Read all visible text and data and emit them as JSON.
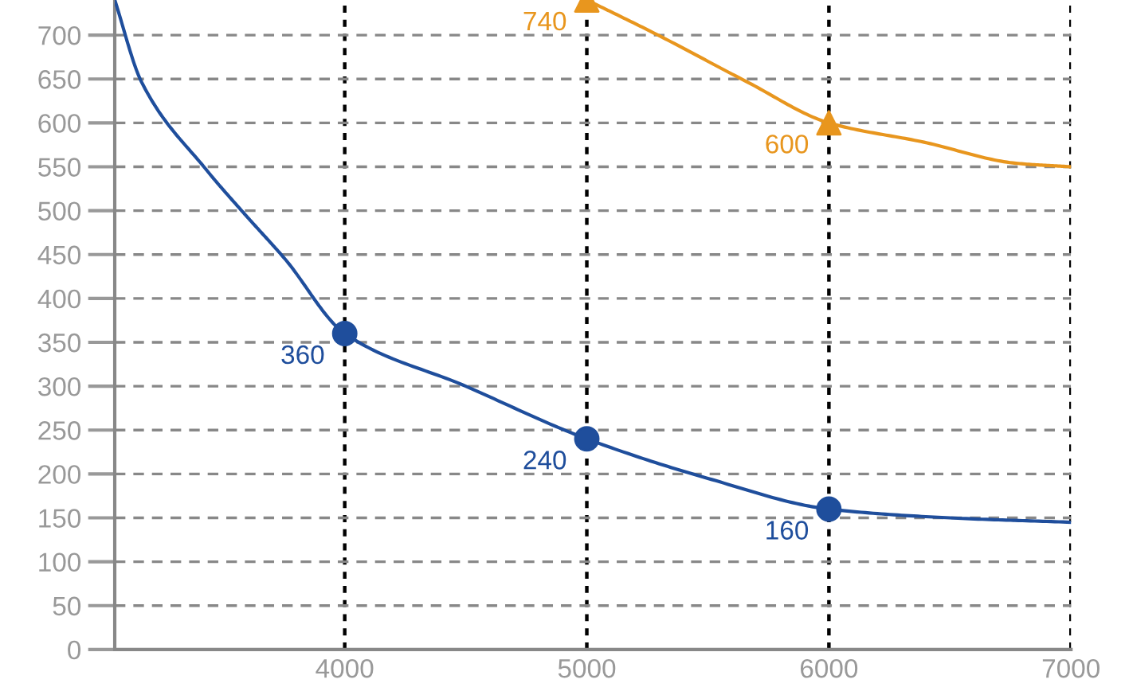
{
  "chart_data": {
    "type": "line",
    "series": [
      {
        "color": "#1f4e9c",
        "x": [
          3050,
          3160,
          3427,
          3587,
          3753,
          4000,
          4500,
          5000,
          5500,
          6000,
          6500,
          7000
        ],
        "values": [
          740,
          647,
          547,
          496,
          445,
          360,
          300,
          240,
          195,
          160,
          150,
          145
        ]
      },
      {
        "color": "#e8961e",
        "x": [
          5000,
          5287,
          5660,
          6000,
          6393,
          6773,
          7000
        ],
        "values": [
          740,
          701,
          647,
          600,
          578,
          554,
          550
        ]
      },
      {
        "type": "scatter",
        "color": "#1f4e9c",
        "marker": "circle",
        "x": [
          4000,
          5000,
          6000
        ],
        "values": [
          360,
          240,
          160
        ],
        "value_labels": [
          "360",
          "240",
          "160"
        ]
      },
      {
        "type": "scatter",
        "color": "#e8961e",
        "marker": "triangle",
        "x": [
          5000,
          6000
        ],
        "values": [
          740,
          600
        ],
        "value_labels": [
          "740",
          "600"
        ]
      }
    ],
    "xlim": [
      3050,
      7000
    ],
    "xticks": [
      4000,
      5000,
      6000,
      7000
    ],
    "ylim": [
      0,
      740
    ],
    "yticks": [
      0,
      50,
      100,
      150,
      200,
      250,
      300,
      350,
      400,
      450,
      500,
      550,
      600,
      650,
      700
    ],
    "grid": true,
    "legend": false
  }
}
